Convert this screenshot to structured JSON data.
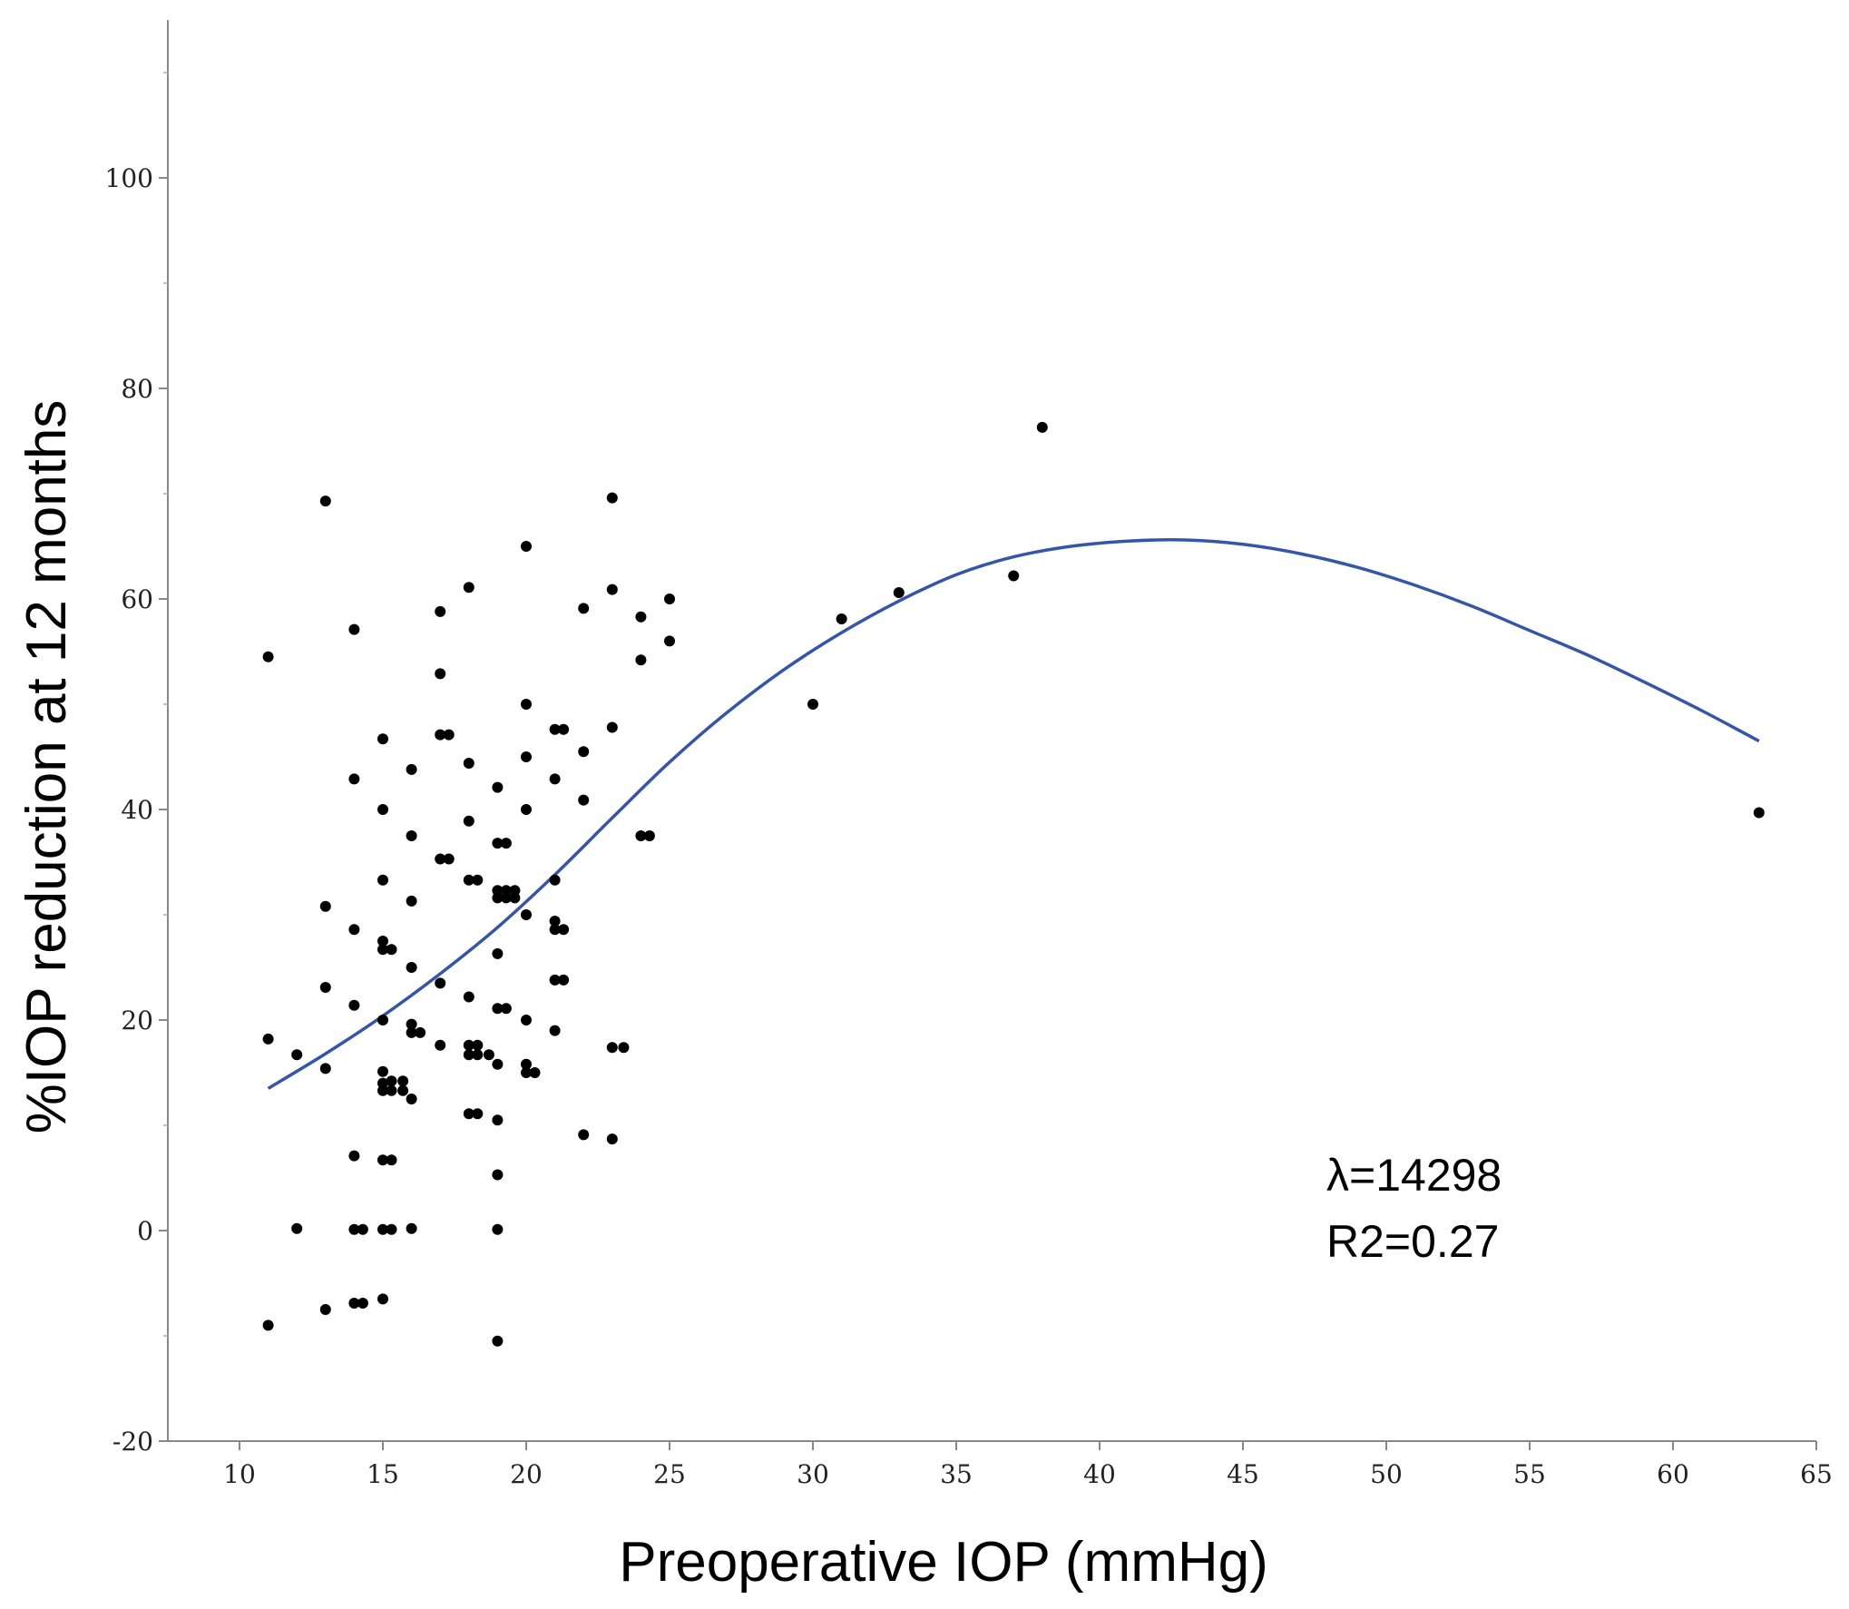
{
  "chart_data": {
    "type": "scatter",
    "title": "",
    "xlabel": "Preoperative IOP (mmHg)",
    "ylabel": "%IOP reduction at 12 months",
    "xlim": [
      7.5,
      65
    ],
    "ylim": [
      -20,
      115
    ],
    "x_ticks": [
      10,
      15,
      20,
      25,
      30,
      35,
      40,
      45,
      50,
      55,
      60,
      65
    ],
    "y_ticks": [
      -20,
      0,
      20,
      40,
      60,
      80,
      100
    ],
    "y_minor_ticks": [
      -10,
      10,
      30,
      50,
      70,
      90,
      110
    ],
    "grid": false,
    "annotations": [
      "λ=14298",
      "R2=0.27"
    ],
    "colors": {
      "points": "#000000",
      "curve": "#3556a6",
      "axis": "#888888"
    },
    "points": [
      [
        11,
        54.5
      ],
      [
        11,
        18.2
      ],
      [
        11,
        -9
      ],
      [
        12,
        16.7
      ],
      [
        12,
        0.2
      ],
      [
        13,
        69.3
      ],
      [
        13,
        30.8
      ],
      [
        13,
        23.1
      ],
      [
        13,
        15.4
      ],
      [
        13,
        -7.5
      ],
      [
        14,
        57.1
      ],
      [
        14,
        42.9
      ],
      [
        14,
        28.6
      ],
      [
        14,
        21.4
      ],
      [
        14,
        7.1
      ],
      [
        14,
        0.1
      ],
      [
        14,
        -6.9
      ],
      [
        14.3,
        0.1
      ],
      [
        14.3,
        -6.9
      ],
      [
        15,
        46.7
      ],
      [
        15,
        40
      ],
      [
        15,
        33.3
      ],
      [
        15,
        27.5
      ],
      [
        15,
        26.7
      ],
      [
        15,
        20
      ],
      [
        15,
        15.1
      ],
      [
        15,
        14
      ],
      [
        15,
        13.3
      ],
      [
        15,
        6.7
      ],
      [
        15,
        0.1
      ],
      [
        15,
        -6.5
      ],
      [
        15.3,
        26.7
      ],
      [
        15.3,
        14.2
      ],
      [
        15.3,
        13.3
      ],
      [
        15.3,
        6.7
      ],
      [
        15.3,
        0.1
      ],
      [
        15.7,
        14.2
      ],
      [
        15.7,
        13.3
      ],
      [
        16,
        43.8
      ],
      [
        16,
        37.5
      ],
      [
        16,
        31.3
      ],
      [
        16,
        25
      ],
      [
        16,
        19.6
      ],
      [
        16,
        18.8
      ],
      [
        16,
        12.5
      ],
      [
        16,
        0.2
      ],
      [
        16.3,
        18.8
      ],
      [
        17,
        58.8
      ],
      [
        17,
        52.9
      ],
      [
        17,
        47.1
      ],
      [
        17,
        35.3
      ],
      [
        17,
        23.5
      ],
      [
        17,
        17.6
      ],
      [
        17.3,
        47.1
      ],
      [
        17.3,
        35.3
      ],
      [
        18,
        61.1
      ],
      [
        18,
        44.4
      ],
      [
        18,
        38.9
      ],
      [
        18,
        33.3
      ],
      [
        18,
        22.2
      ],
      [
        18,
        17.6
      ],
      [
        18,
        16.7
      ],
      [
        18,
        11.1
      ],
      [
        18.3,
        33.3
      ],
      [
        18.3,
        17.6
      ],
      [
        18.3,
        16.7
      ],
      [
        18.3,
        11.1
      ],
      [
        18.7,
        16.7
      ],
      [
        19,
        42.1
      ],
      [
        19,
        36.8
      ],
      [
        19,
        32.3
      ],
      [
        19,
        31.6
      ],
      [
        19,
        26.3
      ],
      [
        19,
        21.1
      ],
      [
        19,
        15.8
      ],
      [
        19,
        10.5
      ],
      [
        19,
        5.3
      ],
      [
        19,
        0.1
      ],
      [
        19,
        -10.5
      ],
      [
        19.3,
        36.8
      ],
      [
        19.3,
        32.3
      ],
      [
        19.3,
        31.6
      ],
      [
        19.3,
        21.1
      ],
      [
        19.6,
        32.3
      ],
      [
        19.6,
        31.6
      ],
      [
        20,
        65
      ],
      [
        20,
        50
      ],
      [
        20,
        45
      ],
      [
        20,
        40
      ],
      [
        20,
        30
      ],
      [
        20,
        20
      ],
      [
        20,
        15.8
      ],
      [
        20,
        15
      ],
      [
        20.3,
        15
      ],
      [
        21,
        47.6
      ],
      [
        21,
        42.9
      ],
      [
        21,
        33.3
      ],
      [
        21,
        29.4
      ],
      [
        21,
        28.6
      ],
      [
        21,
        23.8
      ],
      [
        21,
        19
      ],
      [
        21.3,
        47.6
      ],
      [
        21.3,
        28.6
      ],
      [
        21.3,
        23.8
      ],
      [
        22,
        59.1
      ],
      [
        22,
        45.5
      ],
      [
        22,
        40.9
      ],
      [
        22,
        9.1
      ],
      [
        23,
        69.6
      ],
      [
        23,
        60.9
      ],
      [
        23,
        47.8
      ],
      [
        23,
        17.4
      ],
      [
        23,
        8.7
      ],
      [
        23.4,
        17.4
      ],
      [
        24,
        58.3
      ],
      [
        24,
        54.2
      ],
      [
        24,
        37.5
      ],
      [
        24.3,
        37.5
      ],
      [
        25,
        60
      ],
      [
        25,
        56
      ],
      [
        30,
        50
      ],
      [
        31,
        58.1
      ],
      [
        33,
        60.6
      ],
      [
        37,
        62.2
      ],
      [
        38,
        76.3
      ],
      [
        63,
        39.7
      ]
    ],
    "fit_curve": {
      "name": "",
      "x": [
        11,
        13,
        15,
        17,
        19,
        21,
        23,
        25,
        27,
        29,
        31,
        33,
        35,
        37,
        39,
        41,
        43,
        45,
        47,
        49,
        51,
        53,
        55,
        57,
        59,
        61,
        63
      ],
      "y": [
        13.5,
        16.8,
        20.4,
        24.4,
        28.8,
        33.8,
        39.2,
        44.5,
        49.2,
        53.3,
        56.8,
        59.8,
        62.3,
        64.0,
        65.0,
        65.5,
        65.6,
        65.2,
        64.3,
        63.0,
        61.3,
        59.3,
        57.0,
        54.7,
        52.1,
        49.4,
        46.5
      ]
    }
  }
}
